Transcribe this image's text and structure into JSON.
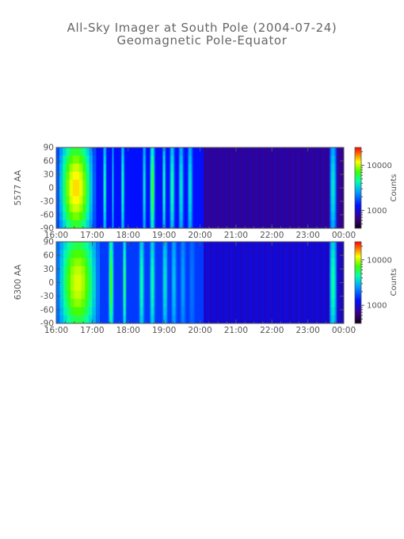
{
  "page": {
    "title": "All-Sky Imager at South Pole (2004-07-24)",
    "subtitle": "Geomagnetic Pole-Equator"
  },
  "chart_data": [
    {
      "type": "heatmap",
      "ylabel": "5577 AA",
      "colorbar_label": "Counts",
      "colorbar_ticks": [
        10000,
        1000
      ],
      "colorbar_scale": "log",
      "x_tick_labels": [
        "16:00",
        "17:00",
        "18:00",
        "19:00",
        "20:00",
        "21:00",
        "22:00",
        "23:00",
        "00:00"
      ],
      "y_tick_labels": [
        90,
        60,
        30,
        0,
        -30,
        -60,
        -90
      ],
      "xlim": [
        "16:00",
        "00:00"
      ],
      "ylim": [
        -90,
        90
      ],
      "bright_intervals_hours": [
        [
          16.0,
          17.1,
          0.85
        ],
        [
          17.3,
          17.4,
          0.6
        ],
        [
          17.55,
          17.6,
          0.55
        ],
        [
          17.8,
          17.9,
          0.6
        ],
        [
          18.4,
          18.5,
          0.55
        ],
        [
          18.6,
          18.75,
          0.7
        ],
        [
          18.95,
          19.05,
          0.6
        ],
        [
          19.15,
          19.3,
          0.6
        ],
        [
          19.4,
          19.55,
          0.55
        ],
        [
          19.65,
          19.8,
          0.55
        ],
        [
          23.6,
          23.8,
          0.55
        ]
      ]
    },
    {
      "type": "heatmap",
      "ylabel": "6300 AA",
      "colorbar_label": "Counts",
      "colorbar_ticks": [
        10000,
        1000
      ],
      "colorbar_scale": "log",
      "x_tick_labels": [
        "16:00",
        "17:00",
        "18:00",
        "19:00",
        "20:00",
        "21:00",
        "22:00",
        "23:00",
        "00:00"
      ],
      "y_tick_labels": [
        90,
        60,
        30,
        0,
        -30,
        -60,
        -90
      ],
      "xlim": [
        "16:00",
        "00:00"
      ],
      "ylim": [
        -90,
        90
      ],
      "bright_intervals_hours": [
        [
          16.0,
          17.2,
          0.75
        ],
        [
          17.45,
          17.6,
          0.65
        ],
        [
          17.85,
          17.95,
          0.6
        ],
        [
          18.3,
          18.45,
          0.55
        ],
        [
          18.6,
          18.75,
          0.55
        ],
        [
          18.95,
          19.1,
          0.5
        ],
        [
          19.2,
          19.35,
          0.45
        ],
        [
          19.45,
          19.6,
          0.4
        ],
        [
          19.7,
          19.85,
          0.35
        ],
        [
          23.6,
          23.8,
          0.55
        ]
      ]
    }
  ]
}
